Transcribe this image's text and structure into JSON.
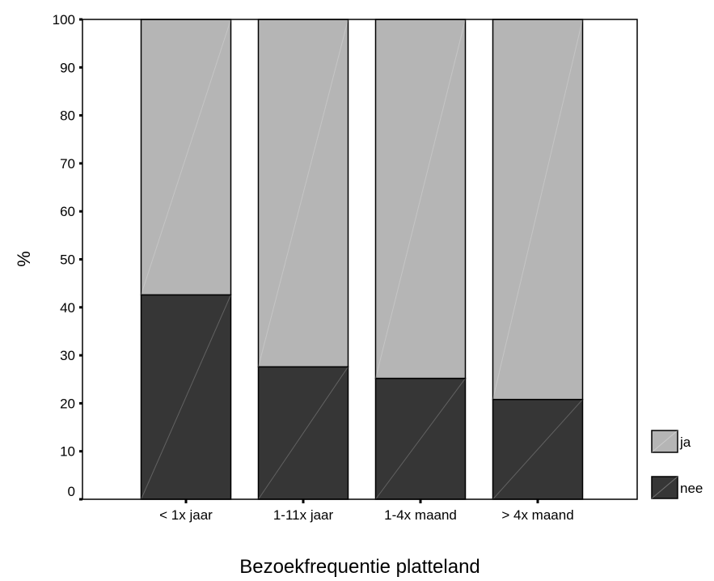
{
  "chart_data": {
    "type": "bar",
    "stacked": true,
    "percent_scale": true,
    "title": "",
    "xlabel": "Bezoekfrequentie platteland",
    "ylabel": "%",
    "ylim": [
      0,
      100
    ],
    "yticks": [
      0,
      10,
      20,
      30,
      40,
      50,
      60,
      70,
      80,
      90,
      100
    ],
    "categories": [
      "< 1x jaar",
      "1-11x jaar",
      "1-4x maand",
      "> 4x maand"
    ],
    "series": [
      {
        "name": "nee",
        "values": [
          42.6,
          27.6,
          25.2,
          20.8
        ],
        "color": "#363636"
      },
      {
        "name": "ja",
        "values": [
          57.4,
          72.4,
          74.8,
          79.2
        ],
        "color": "#b5b5b5"
      }
    ],
    "legend": {
      "placement": "bottom-right",
      "order": [
        "ja",
        "nee"
      ]
    },
    "grid": false
  }
}
